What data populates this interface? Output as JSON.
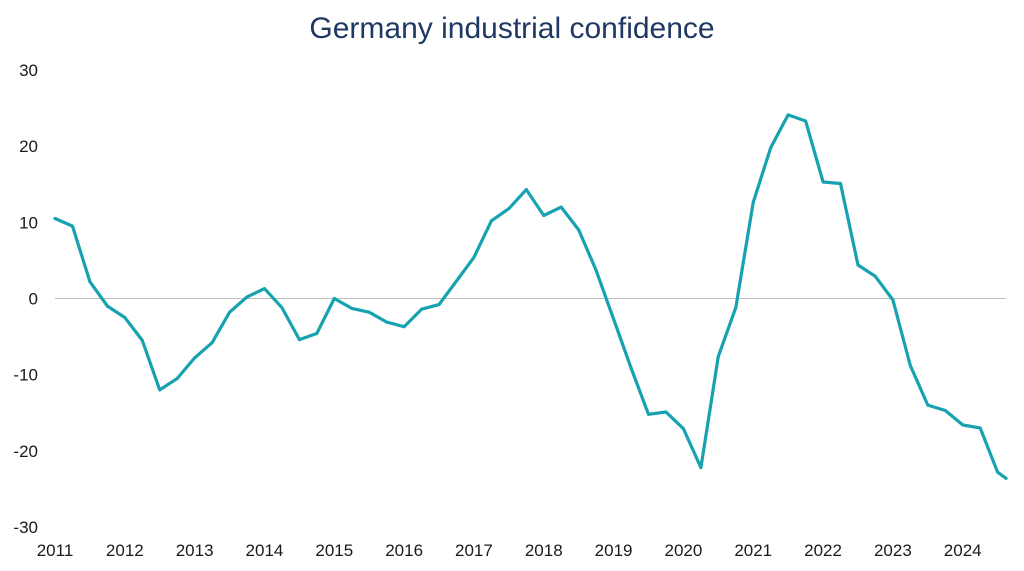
{
  "chart_data": {
    "type": "line",
    "title": "Germany industrial confidence",
    "xlabel": "",
    "ylabel": "",
    "x_range": [
      2011,
      2024.62
    ],
    "ylim": [
      -30,
      30
    ],
    "y_ticks": [
      30,
      20,
      10,
      0,
      -10,
      -20,
      -30
    ],
    "x_ticks": [
      "2011",
      "2012",
      "2013",
      "2014",
      "2015",
      "2016",
      "2017",
      "2018",
      "2019",
      "2020",
      "2021",
      "2022",
      "2023",
      "2024"
    ],
    "grid": false,
    "legend": "none",
    "line_color": "#17a2b0",
    "series": [
      {
        "x": [
          2011.0,
          2011.25,
          2011.5,
          2011.75,
          2012.0,
          2012.25,
          2012.5,
          2012.75,
          2013.0,
          2013.25,
          2013.5,
          2013.75,
          2014.0,
          2014.25,
          2014.5,
          2014.75,
          2015.0,
          2015.25,
          2015.5,
          2015.75,
          2016.0,
          2016.25,
          2016.5,
          2016.75,
          2017.0,
          2017.25,
          2017.5,
          2017.75,
          2018.0,
          2018.25,
          2018.5,
          2018.75,
          2019.0,
          2019.25,
          2019.5,
          2019.75,
          2020.0,
          2020.25,
          2020.5,
          2020.75,
          2021.0,
          2021.25,
          2021.5,
          2021.75,
          2022.0,
          2022.25,
          2022.5,
          2022.75,
          2023.0,
          2023.25,
          2023.5,
          2023.75,
          2024.0,
          2024.25,
          2024.5,
          2024.62
        ],
        "values": [
          10.5,
          9.5,
          2.2,
          -1.0,
          -2.5,
          -5.5,
          -12.0,
          -10.5,
          -7.8,
          -5.8,
          -1.8,
          0.2,
          1.3,
          -1.2,
          -5.4,
          -4.6,
          0.0,
          -1.3,
          -1.8,
          -3.1,
          -3.7,
          -1.4,
          -0.8,
          2.3,
          5.4,
          10.2,
          11.8,
          14.3,
          10.9,
          12.0,
          9.0,
          3.7,
          -2.7,
          -9.1,
          -15.2,
          -14.9,
          -17.1,
          -22.2,
          -7.6,
          -1.2,
          12.6,
          19.8,
          24.1,
          23.3,
          15.3,
          15.1,
          4.4,
          2.9,
          -0.2,
          -8.8,
          -14.0,
          -14.7,
          -16.6,
          -17.0,
          -22.8,
          -23.6
        ]
      }
    ]
  }
}
